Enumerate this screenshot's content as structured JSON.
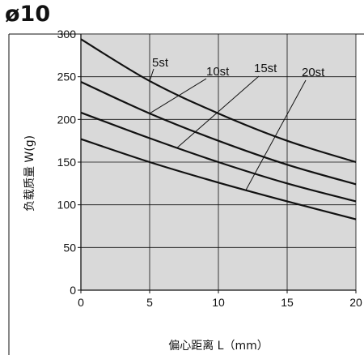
{
  "chart_data": {
    "type": "line",
    "title": "ø10",
    "xlabel": "偏心距离 L（mm）",
    "ylabel": "负载质量 W(g)",
    "xlim": [
      0,
      20
    ],
    "ylim": [
      0,
      300
    ],
    "x_ticks": [
      "0",
      "5",
      "10",
      "15",
      "20"
    ],
    "y_ticks": [
      "0",
      "50",
      "100",
      "150",
      "200",
      "250",
      "300"
    ],
    "grid": true,
    "background_color": "#d9d9d9",
    "line_color": "#111111",
    "series": [
      {
        "name": "5st",
        "x": [
          0,
          5,
          10,
          15,
          20
        ],
        "y": [
          294,
          245,
          207,
          175,
          150
        ]
      },
      {
        "name": "10st",
        "x": [
          0,
          5,
          10,
          15,
          20
        ],
        "y": [
          244,
          207,
          175,
          147,
          124
        ]
      },
      {
        "name": "15st",
        "x": [
          0,
          5,
          10,
          15,
          20
        ],
        "y": [
          208,
          178,
          150,
          125,
          104
        ]
      },
      {
        "name": "20st",
        "x": [
          0,
          5,
          10,
          15,
          20
        ],
        "y": [
          177,
          150,
          126,
          104,
          83
        ]
      }
    ]
  }
}
